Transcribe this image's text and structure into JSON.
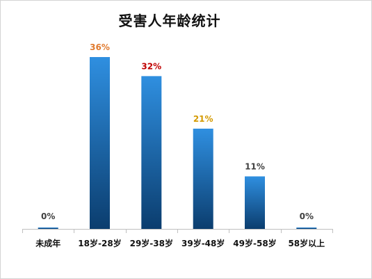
{
  "chart_data": {
    "type": "bar",
    "title": "受害人年龄统计",
    "categories": [
      "未成年",
      "18岁-28岁",
      "29岁-38岁",
      "39岁-48岁",
      "49岁-58岁",
      "58岁以上"
    ],
    "values": [
      0,
      36,
      32,
      21,
      11,
      0
    ],
    "data_labels": [
      "0%",
      "36%",
      "32%",
      "21%",
      "11%",
      "0%"
    ],
    "label_colors": [
      "#404040",
      "#e07a2e",
      "#c00000",
      "#d49a00",
      "#404040",
      "#404040"
    ],
    "bar_color_top": "#2f8fe0",
    "bar_color_bottom": "#0b3d6e",
    "unit": "%",
    "xlabel": "",
    "ylabel": "",
    "ylim": [
      0,
      36
    ],
    "grid": false,
    "legend": "none"
  }
}
